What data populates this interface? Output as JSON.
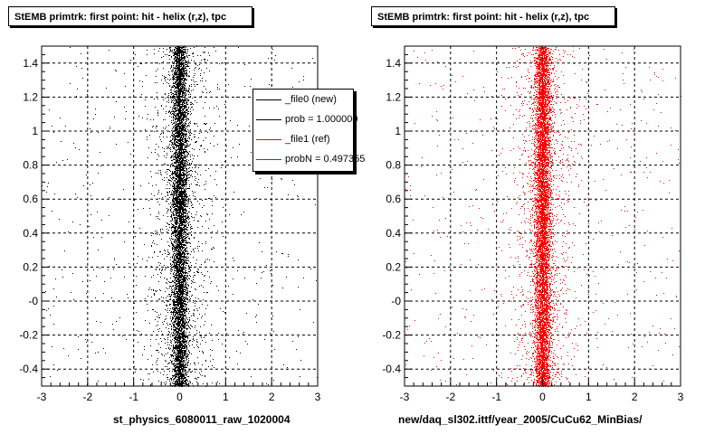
{
  "colors": {
    "new": "#000000",
    "ref": "#ff0000"
  },
  "panels": [
    {
      "title": "StEMB primtrk: first point: hit - helix (r,z), tpc",
      "x_title": "st_physics_6080011_raw_1020004"
    },
    {
      "title": "StEMB primtrk: first point: hit - helix (r,z), tpc",
      "x_title": "new/daq_sl302.ittf/year_2005/CuCu62_MinBias/"
    }
  ],
  "legend": {
    "entries": [
      {
        "label": "_file0 (new)",
        "color": "#000000"
      },
      {
        "label": "prob = 1.000000",
        "color": "#000000"
      },
      {
        "label": "_file1 (ref)",
        "color": "#ff0000"
      },
      {
        "label": "probN = 0.497355",
        "color": "#ff0000"
      }
    ]
  },
  "chart_data": [
    {
      "type": "scatter",
      "title": "StEMB primtrk: first point: hit - helix (r,z), tpc",
      "xlabel": "st_physics_6080011_raw_1020004",
      "ylabel": "",
      "xlim": [
        -3,
        3
      ],
      "ylim": [
        -0.5,
        1.5
      ],
      "x_ticks": [
        -3,
        -2,
        -1,
        0,
        1,
        2,
        3
      ],
      "x_tick_labels": [
        "-3",
        "-2",
        "-1",
        "0",
        "1",
        "2",
        "3"
      ],
      "y_ticks": [
        -0.4,
        -0.2,
        0,
        0.2,
        0.4,
        0.6,
        0.8,
        1,
        1.2,
        1.4
      ],
      "y_tick_labels": [
        "-0.4",
        "-0.2",
        "-0",
        "0.2",
        "0.4",
        "0.6",
        "0.8",
        "1",
        "1.2",
        "1.4"
      ],
      "grid": true,
      "legend_position": "top-right",
      "series": [
        {
          "name": "_file0 (new)",
          "color": "#000000",
          "distribution": "dense vertical band centered at x=0 spanning y from -0.5 to 1.5, core width about +/-0.2, sparse tails out to +/-3"
        }
      ]
    },
    {
      "type": "scatter",
      "title": "StEMB primtrk: first point: hit - helix (r,z), tpc",
      "xlabel": "new/daq_sl302.ittf/year_2005/CuCu62_MinBias/",
      "ylabel": "",
      "xlim": [
        -3,
        3
      ],
      "ylim": [
        -0.5,
        1.5
      ],
      "x_ticks": [
        -3,
        -2,
        -1,
        0,
        1,
        2,
        3
      ],
      "x_tick_labels": [
        "-3",
        "-2",
        "-1",
        "0",
        "1",
        "2",
        "3"
      ],
      "y_ticks": [
        -0.4,
        -0.2,
        0,
        0.2,
        0.4,
        0.6,
        0.8,
        1,
        1.2,
        1.4
      ],
      "y_tick_labels": [
        "-0.4",
        "-0.2",
        "-0",
        "0.2",
        "0.4",
        "0.6",
        "0.8",
        "1",
        "1.2",
        "1.4"
      ],
      "grid": true,
      "series": [
        {
          "name": "_file1 (ref)",
          "color": "#ff0000",
          "distribution": "dense vertical band centered at x=0 spanning y from -0.5 to 1.5, core width about +/-0.2, sparse tails out to +/-3"
        }
      ]
    }
  ]
}
